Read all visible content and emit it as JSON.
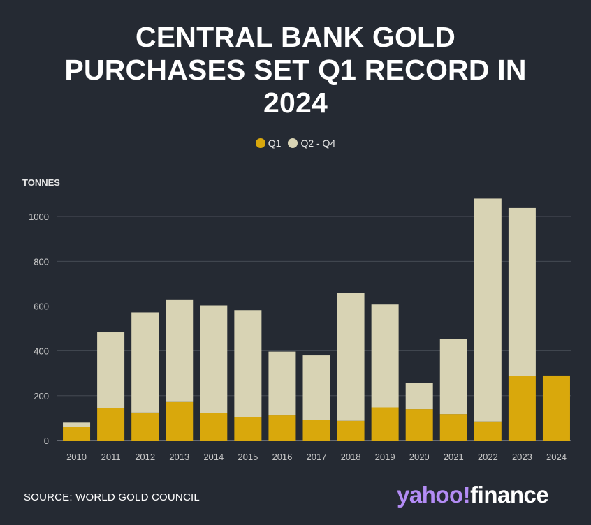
{
  "title_lines": [
    "CENTRAL BANK GOLD",
    "PURCHASES SET Q1 RECORD IN",
    "2024"
  ],
  "legend": [
    {
      "label": "Q1",
      "color": "#d9a80c"
    },
    {
      "label": "Q2 - Q4",
      "color": "#d8d3b4"
    }
  ],
  "source": "SOURCE: WORLD GOLD COUNCIL",
  "logo": {
    "part1": "yahoo!",
    "part2": "finance"
  },
  "colors": {
    "background": "#252a33",
    "q1": "#d9a80c",
    "q2_q4": "#d8d3b4",
    "grid": "#4a4f59",
    "text": "#c8c8c8"
  },
  "chart_data": {
    "type": "bar",
    "stacked": true,
    "title": "CENTRAL BANK GOLD PURCHASES SET Q1 RECORD IN 2024",
    "ylabel": "TONNES",
    "xlabel": "",
    "ylim": [
      0,
      1100
    ],
    "yticks": [
      0,
      200,
      400,
      600,
      800,
      1000
    ],
    "grid": true,
    "legend_position": "top-center",
    "categories": [
      "2010",
      "2011",
      "2012",
      "2013",
      "2014",
      "2015",
      "2016",
      "2017",
      "2018",
      "2019",
      "2020",
      "2021",
      "2022",
      "2023",
      "2024"
    ],
    "series": [
      {
        "name": "Q1",
        "values": [
          60,
          145,
          125,
          172,
          122,
          105,
          112,
          92,
          88,
          148,
          140,
          118,
          85,
          288,
          290
        ]
      },
      {
        "name": "Q2 - Q4",
        "values": [
          20,
          338,
          447,
          458,
          481,
          477,
          285,
          288,
          570,
          459,
          117,
          335,
          995,
          750,
          0
        ]
      }
    ]
  }
}
